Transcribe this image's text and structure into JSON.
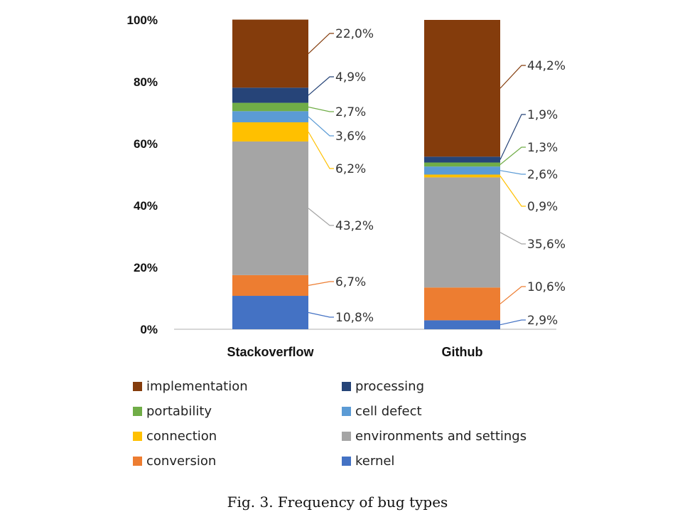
{
  "chart_data": {
    "type": "bar",
    "stacked": true,
    "caption": "Fig. 3.  Frequency of bug types",
    "categories": [
      "Stackoverflow",
      "Github"
    ],
    "y_ticks": [
      "0%",
      "20%",
      "40%",
      "60%",
      "80%",
      "100%"
    ],
    "ylim": [
      0,
      100
    ],
    "legend_position": "bottom",
    "series": [
      {
        "name": "kernel",
        "color": "#4472C4",
        "values": [
          10.8,
          2.9
        ],
        "labels": [
          "10,8%",
          "2,9%"
        ]
      },
      {
        "name": "conversion",
        "color": "#ED7D31",
        "values": [
          6.7,
          10.6
        ],
        "labels": [
          "6,7%",
          "10,6%"
        ]
      },
      {
        "name": "environments and settings",
        "color": "#A5A5A5",
        "values": [
          43.2,
          35.6
        ],
        "labels": [
          "43,2%",
          "35,6%"
        ]
      },
      {
        "name": "connection",
        "color": "#FFC000",
        "values": [
          6.2,
          0.9
        ],
        "labels": [
          "6,2%",
          "0,9%"
        ]
      },
      {
        "name": "cell defect",
        "color": "#5B9BD5",
        "values": [
          3.6,
          2.6
        ],
        "labels": [
          "3,6%",
          "2,6%"
        ]
      },
      {
        "name": "portability",
        "color": "#70AD47",
        "values": [
          2.7,
          1.3
        ],
        "labels": [
          "2,7%",
          "1,3%"
        ]
      },
      {
        "name": "processing",
        "color": "#264478",
        "values": [
          4.9,
          1.9
        ],
        "labels": [
          "4,9%",
          "1,9%"
        ]
      },
      {
        "name": "implementation",
        "color": "#843C0C",
        "values": [
          22.0,
          44.2
        ],
        "labels": [
          "22,0%",
          "44,2%"
        ]
      }
    ],
    "legend_order": [
      "implementation",
      "processing",
      "portability",
      "cell defect",
      "connection",
      "environments and settings",
      "conversion",
      "kernel"
    ]
  }
}
